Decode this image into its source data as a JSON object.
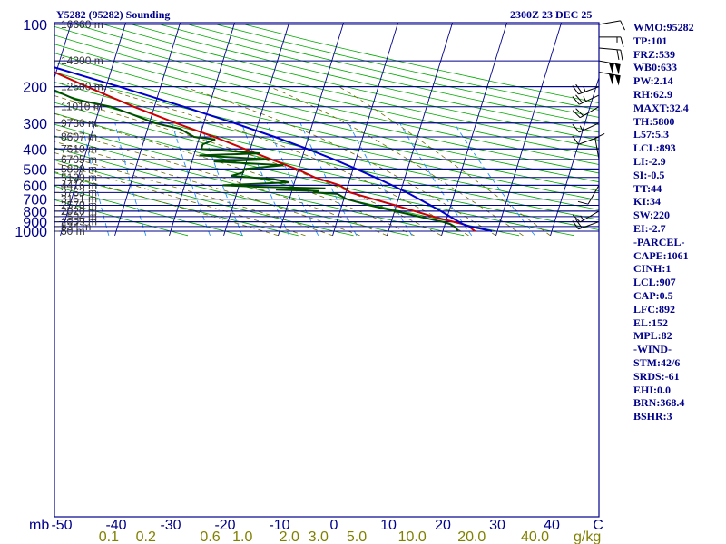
{
  "header": {
    "station": "Y5282 (95282) Sounding",
    "time": "2300Z 23 DEC 25"
  },
  "indices": [
    "WMO:95282",
    "TP:101",
    "FRZ:539",
    "WB0:633",
    "PW:2.14",
    "RH:62.9",
    "MAXT:32.4",
    "TH:5800",
    "L57:5.3",
    "LCL:893",
    "LI:-2.9",
    "SI:-0.5",
    "TT:44",
    "KI:34",
    "SW:220",
    "EI:-2.7",
    "-PARCEL-",
    "CAPE:1061",
    "CINH:1",
    "LCL:907",
    "CAP:0.5",
    "LFC:892",
    "EL:152",
    "MPL:82",
    "-WIND-",
    "STM:42/6",
    "SRDS:-61",
    "EHI:0.0",
    "BRN:368.4",
    "BSHR:3"
  ],
  "colors": {
    "frame": "#00008b",
    "isobar": "#00008b",
    "isotherm": "#00008b",
    "dry_adiabat": "#00aa00",
    "moist_adiabat": "#6b6b00",
    "mixing_ratio": "#1e90ff",
    "temperature": "#cc0000",
    "dewpoint": "#004d00",
    "parcel": "#0000cc",
    "wind": "#000000",
    "mixing_ratio_labels": "#808000"
  },
  "chart_data": {
    "type": "line",
    "diagram": "skew-T log-P",
    "xlabel": "C",
    "ylabel": "mb",
    "xlim": [
      -50,
      50
    ],
    "ylim": [
      1000,
      100
    ],
    "pressure_ticks": [
      "100",
      "200",
      "300",
      "400",
      "500",
      "600",
      "700",
      "800",
      "900",
      "1000"
    ],
    "temperature_ticks": [
      "-50",
      "-40",
      "-30",
      "-20",
      "-10",
      "0",
      "10",
      "20",
      "30",
      "40"
    ],
    "mixing_ratio_labels": [
      "0.1",
      "0.2",
      "0.6",
      "1.0",
      "2.0",
      "3.0",
      "5.0",
      "10.0",
      "20.0",
      "40.0"
    ],
    "mixing_ratio_unit": "g/kg",
    "height_levels": [
      {
        "label": "16660 m",
        "p": 100
      },
      {
        "label": "14300 m",
        "p": 150
      },
      {
        "label": "12500 m",
        "p": 200
      },
      {
        "label": "11010 m",
        "p": 250
      },
      {
        "label": "9730 m",
        "p": 300
      },
      {
        "label": "8607 m",
        "p": 350
      },
      {
        "label": "7610 m",
        "p": 400
      },
      {
        "label": "6705 m",
        "p": 450
      },
      {
        "label": "5880 m",
        "p": 500
      },
      {
        "label": "5120 m",
        "p": 550
      },
      {
        "label": "4416 m",
        "p": 600
      },
      {
        "label": "3763 m",
        "p": 650
      },
      {
        "label": "3151 m",
        "p": 700
      },
      {
        "label": "2570 m",
        "p": 750
      },
      {
        "label": "2020 m",
        "p": 800
      },
      {
        "label": "1504 m",
        "p": 850
      },
      {
        "label": "1009 m",
        "p": 900
      },
      {
        "label": "534 m",
        "p": 950
      },
      {
        "label": "50 m",
        "p": 1000
      }
    ],
    "series": [
      {
        "key": "temperature",
        "points": [
          [
            1000,
            25.9
          ],
          [
            975,
            25.2
          ],
          [
            950,
            24.6
          ],
          [
            925,
            23.3
          ],
          [
            900,
            21.4
          ],
          [
            875,
            19.4
          ],
          [
            850,
            17.4
          ],
          [
            800,
            13.7
          ],
          [
            750,
            9.8
          ],
          [
            700,
            5.5
          ],
          [
            650,
            0.8
          ],
          [
            600,
            -1.5
          ],
          [
            550,
            -6.5
          ],
          [
            500,
            -10.4
          ],
          [
            450,
            -15.5
          ],
          [
            400,
            -21.0
          ],
          [
            350,
            -27.3
          ],
          [
            300,
            -35.1
          ],
          [
            250,
            -43.8
          ],
          [
            200,
            -53.5
          ],
          [
            150,
            -65.7
          ],
          [
            130,
            -71.5
          ],
          [
            115,
            -76.0
          ],
          [
            100,
            -79.5
          ]
        ]
      },
      {
        "key": "dewpoint",
        "points": [
          [
            1000,
            22.8
          ],
          [
            975,
            22.4
          ],
          [
            950,
            21.9
          ],
          [
            925,
            21.0
          ],
          [
            900,
            19.4
          ],
          [
            875,
            17.1
          ],
          [
            850,
            14.8
          ],
          [
            800,
            10.1
          ],
          [
            750,
            5.1
          ],
          [
            700,
            0.6
          ],
          [
            660,
            -1.5
          ],
          [
            650,
            -6.0
          ],
          [
            640,
            -5.0
          ],
          [
            630,
            -13.0
          ],
          [
            620,
            -4.0
          ],
          [
            610,
            -16.0
          ],
          [
            600,
            -23.0
          ],
          [
            580,
            -11.0
          ],
          [
            560,
            -14.0
          ],
          [
            540,
            -22.0
          ],
          [
            520,
            -20.0
          ],
          [
            500,
            -20.0
          ],
          [
            480,
            -13.0
          ],
          [
            460,
            -26.0
          ],
          [
            450,
            -16.0
          ],
          [
            430,
            -29.0
          ],
          [
            420,
            -18.0
          ],
          [
            400,
            -29.0
          ],
          [
            380,
            -29.0
          ],
          [
            360,
            -27.0
          ],
          [
            350,
            -31.0
          ],
          [
            320,
            -34.0
          ],
          [
            300,
            -39.0
          ],
          [
            270,
            -44.0
          ],
          [
            250,
            -48.0
          ],
          [
            230,
            -55.0
          ],
          [
            200,
            -61.0
          ],
          [
            170,
            -68.0
          ],
          [
            150,
            -72.0
          ],
          [
            125,
            -82.0
          ],
          [
            115,
            -88.0
          ],
          [
            100,
            -89.0
          ]
        ]
      },
      {
        "key": "parcel",
        "points": [
          [
            1000,
            29.0
          ],
          [
            975,
            27.0
          ],
          [
            950,
            24.7
          ],
          [
            925,
            23.3
          ],
          [
            900,
            22.4
          ],
          [
            850,
            20.5
          ],
          [
            800,
            18.5
          ],
          [
            750,
            16.3
          ],
          [
            700,
            13.9
          ],
          [
            650,
            11.2
          ],
          [
            600,
            8.1
          ],
          [
            550,
            4.6
          ],
          [
            500,
            0.6
          ],
          [
            450,
            -4.0
          ],
          [
            400,
            -9.5
          ],
          [
            350,
            -16.2
          ],
          [
            300,
            -24.4
          ],
          [
            250,
            -34.6
          ],
          [
            200,
            -47.6
          ],
          [
            150,
            -65.0
          ],
          [
            100,
            -85.0
          ]
        ]
      }
    ],
    "wind_barbs": [
      {
        "p": 100,
        "dir": 80,
        "speed": 10
      },
      {
        "p": 115,
        "dir": 90,
        "speed": 15
      },
      {
        "p": 130,
        "dir": 95,
        "speed": 20
      },
      {
        "p": 150,
        "dir": 100,
        "speed": 100
      },
      {
        "p": 170,
        "dir": 100,
        "speed": 100
      },
      {
        "p": 200,
        "dir": 250,
        "speed": 25
      },
      {
        "p": 220,
        "dir": 245,
        "speed": 25
      },
      {
        "p": 250,
        "dir": 240,
        "speed": 20
      },
      {
        "p": 300,
        "dir": 245,
        "speed": 15
      },
      {
        "p": 350,
        "dir": 250,
        "speed": 10
      },
      {
        "p": 450,
        "dir": 350,
        "speed": 10
      },
      {
        "p": 600,
        "dir": 210,
        "speed": 10
      },
      {
        "p": 800,
        "dir": 240,
        "speed": 15
      },
      {
        "p": 900,
        "dir": 250,
        "speed": 20
      }
    ]
  }
}
